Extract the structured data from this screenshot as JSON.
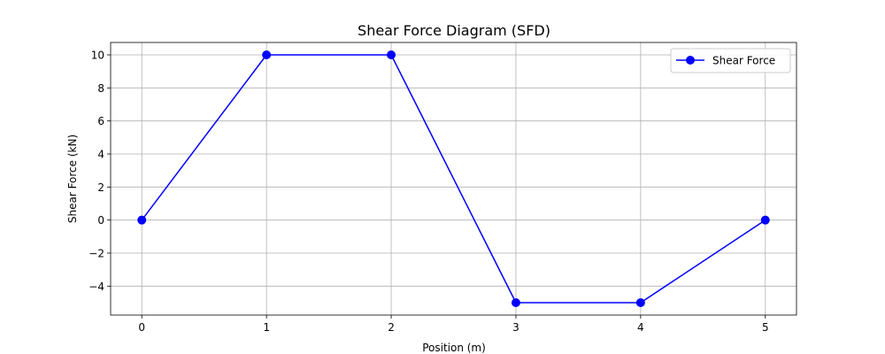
{
  "chart_data": {
    "type": "line",
    "title": "Shear Force Diagram (SFD)",
    "xlabel": "Position (m)",
    "ylabel": "Shear Force (kN)",
    "xlim": [
      -0.25,
      5.25
    ],
    "ylim": [
      -5.75,
      10.75
    ],
    "xticks": [
      0,
      1,
      2,
      3,
      4,
      5
    ],
    "xtick_labels": [
      "0",
      "1",
      "2",
      "3",
      "4",
      "5"
    ],
    "yticks": [
      -4,
      -2,
      0,
      2,
      4,
      6,
      8,
      10
    ],
    "ytick_labels": [
      "−4",
      "−2",
      "0",
      "2",
      "4",
      "6",
      "8",
      "10"
    ],
    "grid": true,
    "legend_position": "top-right",
    "series": [
      {
        "name": "Shear Force",
        "color": "#0000ff",
        "marker": "circle",
        "x": [
          0,
          1,
          2,
          3,
          4,
          5
        ],
        "y": [
          0,
          10,
          10,
          -5,
          -5,
          0
        ]
      }
    ]
  }
}
